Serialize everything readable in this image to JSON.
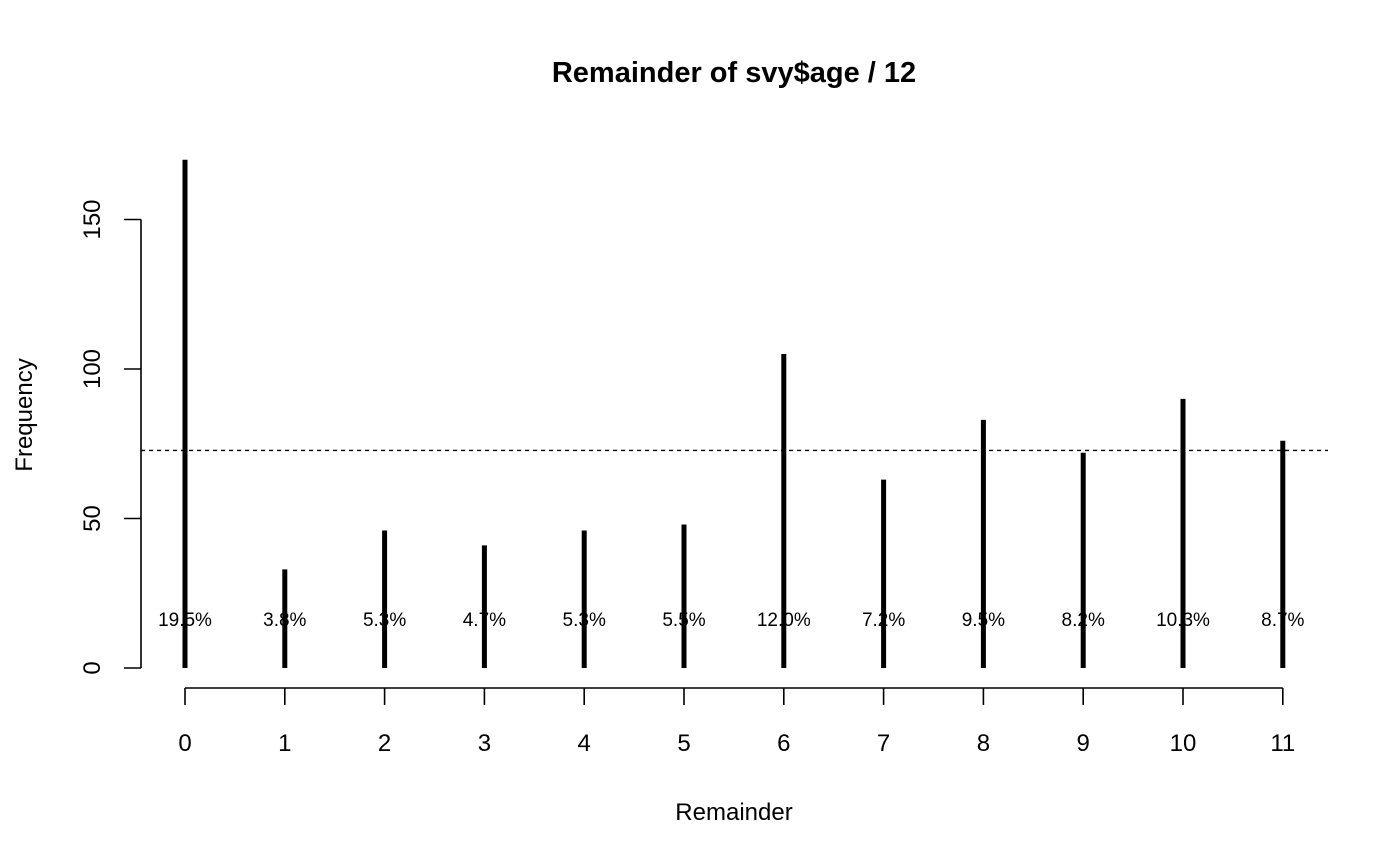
{
  "chart_data": {
    "type": "bar",
    "title": "Remainder of svy$age / 12",
    "xlabel": "Remainder",
    "ylabel": "Frequency",
    "categories": [
      "0",
      "1",
      "2",
      "3",
      "4",
      "5",
      "6",
      "7",
      "8",
      "9",
      "10",
      "11"
    ],
    "values": [
      170,
      33,
      46,
      41,
      46,
      48,
      105,
      63,
      83,
      72,
      90,
      76
    ],
    "percent_labels": [
      "19.5%",
      "3.8%",
      "5.3%",
      "4.7%",
      "5.3%",
      "5.5%",
      "12.0%",
      "7.2%",
      "9.5%",
      "8.2%",
      "10.3%",
      "8.7%"
    ],
    "reference_line": 72.75,
    "ylim": [
      0,
      170
    ],
    "yticks": [
      0,
      50,
      100,
      150
    ],
    "grid": false,
    "legend": "none",
    "colors": {
      "bars": "#000000",
      "background": "#ffffff"
    }
  }
}
